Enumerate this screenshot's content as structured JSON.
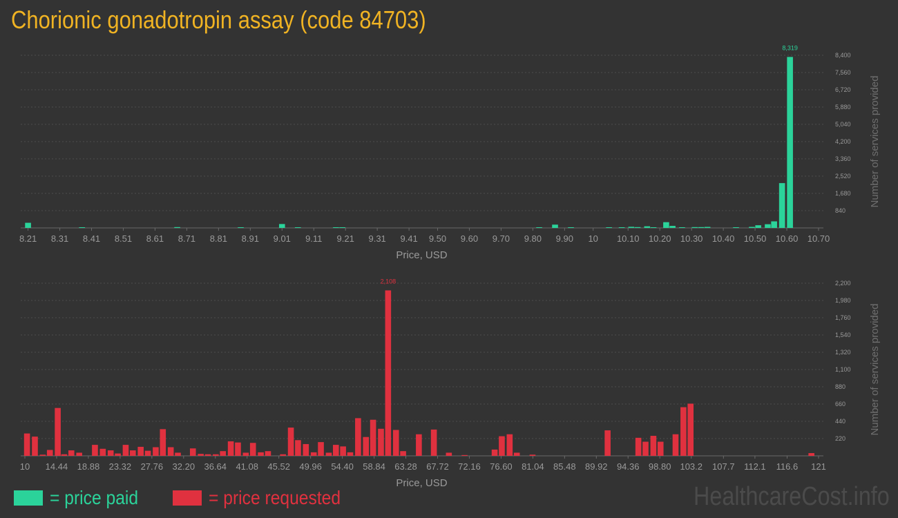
{
  "title": "Chorionic gonadotropin assay (code 84703)",
  "legend": {
    "paid_label": "= price paid",
    "requested_label": "= price requested"
  },
  "watermark": "HealthcareCost.info",
  "colors": {
    "paid": "#2bd39a",
    "requested": "#e0313f",
    "title": "#f0b323",
    "background": "#333333",
    "axis_text": "#9a9a9a"
  },
  "chart_data": [
    {
      "type": "bar",
      "id": "paid",
      "xlabel": "Price, USD",
      "ylabel": "Number of services provided",
      "xlim": [
        8.2,
        10.7
      ],
      "ylim": [
        0,
        8400
      ],
      "xticks": [
        {
          "v": 8.21,
          "label": "8.21"
        },
        {
          "v": 8.31,
          "label": "8.31"
        },
        {
          "v": 8.41,
          "label": "8.41"
        },
        {
          "v": 8.51,
          "label": "8.51"
        },
        {
          "v": 8.61,
          "label": "8.61"
        },
        {
          "v": 8.71,
          "label": "8.71"
        },
        {
          "v": 8.81,
          "label": "8.81"
        },
        {
          "v": 8.91,
          "label": "8.91"
        },
        {
          "v": 9.01,
          "label": "9.01"
        },
        {
          "v": 9.11,
          "label": "9.11"
        },
        {
          "v": 9.21,
          "label": "9.21"
        },
        {
          "v": 9.31,
          "label": "9.31"
        },
        {
          "v": 9.41,
          "label": "9.41"
        },
        {
          "v": 9.5,
          "label": "9.50"
        },
        {
          "v": 9.6,
          "label": "9.60"
        },
        {
          "v": 9.7,
          "label": "9.70"
        },
        {
          "v": 9.8,
          "label": "9.80"
        },
        {
          "v": 9.9,
          "label": "9.90"
        },
        {
          "v": 9.99,
          "label": "10"
        },
        {
          "v": 10.1,
          "label": "10.10"
        },
        {
          "v": 10.2,
          "label": "10.20"
        },
        {
          "v": 10.3,
          "label": "10.30"
        },
        {
          "v": 10.4,
          "label": "10.40"
        },
        {
          "v": 10.5,
          "label": "10.50"
        },
        {
          "v": 10.6,
          "label": "10.60"
        },
        {
          "v": 10.7,
          "label": "10.70"
        }
      ],
      "yticks": [
        {
          "v": 840,
          "label": "840"
        },
        {
          "v": 1680,
          "label": "1,680"
        },
        {
          "v": 2520,
          "label": "2,520"
        },
        {
          "v": 3360,
          "label": "3,360"
        },
        {
          "v": 4200,
          "label": "4,200"
        },
        {
          "v": 5040,
          "label": "5,040"
        },
        {
          "v": 5880,
          "label": "5,880"
        },
        {
          "v": 6720,
          "label": "6,720"
        },
        {
          "v": 7560,
          "label": "7,560"
        },
        {
          "v": 8400,
          "label": "8,400"
        }
      ],
      "peak_label": {
        "x": 10.6,
        "value": 8319,
        "label": "8,319"
      },
      "points": [
        {
          "x": 8.21,
          "y": 250
        },
        {
          "x": 8.38,
          "y": 30
        },
        {
          "x": 8.68,
          "y": 40
        },
        {
          "x": 8.88,
          "y": 20
        },
        {
          "x": 9.01,
          "y": 190
        },
        {
          "x": 9.06,
          "y": 25
        },
        {
          "x": 9.18,
          "y": 20
        },
        {
          "x": 9.2,
          "y": 20
        },
        {
          "x": 9.82,
          "y": 30
        },
        {
          "x": 9.87,
          "y": 160
        },
        {
          "x": 9.92,
          "y": 25
        },
        {
          "x": 10.04,
          "y": 30
        },
        {
          "x": 10.08,
          "y": 30
        },
        {
          "x": 10.11,
          "y": 55
        },
        {
          "x": 10.13,
          "y": 40
        },
        {
          "x": 10.16,
          "y": 80
        },
        {
          "x": 10.18,
          "y": 30
        },
        {
          "x": 10.22,
          "y": 280
        },
        {
          "x": 10.24,
          "y": 100
        },
        {
          "x": 10.27,
          "y": 30
        },
        {
          "x": 10.31,
          "y": 40
        },
        {
          "x": 10.33,
          "y": 40
        },
        {
          "x": 10.35,
          "y": 50
        },
        {
          "x": 10.44,
          "y": 20
        },
        {
          "x": 10.49,
          "y": 50
        },
        {
          "x": 10.51,
          "y": 130
        },
        {
          "x": 10.54,
          "y": 180
        },
        {
          "x": 10.56,
          "y": 320
        },
        {
          "x": 10.585,
          "y": 2180
        },
        {
          "x": 10.61,
          "y": 8319
        }
      ]
    },
    {
      "type": "bar",
      "id": "requested",
      "xlabel": "Price, USD",
      "ylabel": "Number of services provided",
      "xlim": [
        10,
        121
      ],
      "ylim": [
        0,
        2200
      ],
      "xticks": [
        {
          "v": 10,
          "label": "10"
        },
        {
          "v": 14.44,
          "label": "14.44"
        },
        {
          "v": 18.88,
          "label": "18.88"
        },
        {
          "v": 23.32,
          "label": "23.32"
        },
        {
          "v": 27.76,
          "label": "27.76"
        },
        {
          "v": 32.2,
          "label": "32.20"
        },
        {
          "v": 36.64,
          "label": "36.64"
        },
        {
          "v": 41.08,
          "label": "41.08"
        },
        {
          "v": 45.52,
          "label": "45.52"
        },
        {
          "v": 49.96,
          "label": "49.96"
        },
        {
          "v": 54.4,
          "label": "54.40"
        },
        {
          "v": 58.84,
          "label": "58.84"
        },
        {
          "v": 63.28,
          "label": "63.28"
        },
        {
          "v": 67.72,
          "label": "67.72"
        },
        {
          "v": 72.16,
          "label": "72.16"
        },
        {
          "v": 76.6,
          "label": "76.60"
        },
        {
          "v": 81.04,
          "label": "81.04"
        },
        {
          "v": 85.48,
          "label": "85.48"
        },
        {
          "v": 89.92,
          "label": "89.92"
        },
        {
          "v": 94.36,
          "label": "94.36"
        },
        {
          "v": 98.8,
          "label": "98.80"
        },
        {
          "v": 103.2,
          "label": "103.2"
        },
        {
          "v": 107.7,
          "label": "107.7"
        },
        {
          "v": 112.1,
          "label": "112.1"
        },
        {
          "v": 116.6,
          "label": "116.6"
        },
        {
          "v": 121,
          "label": "121"
        }
      ],
      "yticks": [
        {
          "v": 220,
          "label": "220"
        },
        {
          "v": 440,
          "label": "440"
        },
        {
          "v": 660,
          "label": "660"
        },
        {
          "v": 880,
          "label": "880"
        },
        {
          "v": 1100,
          "label": "1,100"
        },
        {
          "v": 1320,
          "label": "1,320"
        },
        {
          "v": 1540,
          "label": "1,540"
        },
        {
          "v": 1760,
          "label": "1,760"
        },
        {
          "v": 1980,
          "label": "1,980"
        },
        {
          "v": 2200,
          "label": "2,200"
        }
      ],
      "peak_label": {
        "x": 62.5,
        "value": 2108,
        "label": "2,108"
      },
      "points": [
        {
          "x": 10.3,
          "y": 285
        },
        {
          "x": 11.4,
          "y": 245
        },
        {
          "x": 12.5,
          "y": 15
        },
        {
          "x": 13.5,
          "y": 75
        },
        {
          "x": 14.6,
          "y": 610
        },
        {
          "x": 15.5,
          "y": 20
        },
        {
          "x": 16.5,
          "y": 70
        },
        {
          "x": 17.6,
          "y": 40
        },
        {
          "x": 19.8,
          "y": 140
        },
        {
          "x": 20.9,
          "y": 90
        },
        {
          "x": 22.0,
          "y": 70
        },
        {
          "x": 23.0,
          "y": 30
        },
        {
          "x": 24.1,
          "y": 140
        },
        {
          "x": 25.1,
          "y": 70
        },
        {
          "x": 26.2,
          "y": 115
        },
        {
          "x": 27.2,
          "y": 65
        },
        {
          "x": 28.3,
          "y": 110
        },
        {
          "x": 29.3,
          "y": 340
        },
        {
          "x": 30.4,
          "y": 110
        },
        {
          "x": 31.4,
          "y": 40
        },
        {
          "x": 33.5,
          "y": 95
        },
        {
          "x": 34.6,
          "y": 25
        },
        {
          "x": 35.6,
          "y": 20
        },
        {
          "x": 36.7,
          "y": 20
        },
        {
          "x": 37.7,
          "y": 60
        },
        {
          "x": 38.8,
          "y": 185
        },
        {
          "x": 39.8,
          "y": 170
        },
        {
          "x": 40.9,
          "y": 40
        },
        {
          "x": 41.9,
          "y": 165
        },
        {
          "x": 43.0,
          "y": 45
        },
        {
          "x": 44.0,
          "y": 60
        },
        {
          "x": 46.1,
          "y": 20
        },
        {
          "x": 47.2,
          "y": 360
        },
        {
          "x": 48.2,
          "y": 200
        },
        {
          "x": 49.3,
          "y": 150
        },
        {
          "x": 50.4,
          "y": 45
        },
        {
          "x": 51.4,
          "y": 175
        },
        {
          "x": 52.5,
          "y": 40
        },
        {
          "x": 53.5,
          "y": 140
        },
        {
          "x": 54.5,
          "y": 120
        },
        {
          "x": 55.5,
          "y": 45
        },
        {
          "x": 56.6,
          "y": 480
        },
        {
          "x": 57.7,
          "y": 240
        },
        {
          "x": 58.7,
          "y": 460
        },
        {
          "x": 59.8,
          "y": 345
        },
        {
          "x": 60.8,
          "y": 2108
        },
        {
          "x": 61.9,
          "y": 330
        },
        {
          "x": 62.9,
          "y": 60
        },
        {
          "x": 65.1,
          "y": 275
        },
        {
          "x": 67.2,
          "y": 335
        },
        {
          "x": 69.3,
          "y": 40
        },
        {
          "x": 71.5,
          "y": 10
        },
        {
          "x": 75.7,
          "y": 80
        },
        {
          "x": 76.7,
          "y": 250
        },
        {
          "x": 77.8,
          "y": 275
        },
        {
          "x": 78.8,
          "y": 40
        },
        {
          "x": 81.0,
          "y": 15
        },
        {
          "x": 91.5,
          "y": 325
        },
        {
          "x": 95.8,
          "y": 230
        },
        {
          "x": 96.8,
          "y": 180
        },
        {
          "x": 97.9,
          "y": 255
        },
        {
          "x": 98.9,
          "y": 180
        },
        {
          "x": 101.0,
          "y": 275
        },
        {
          "x": 102.1,
          "y": 620
        },
        {
          "x": 103.1,
          "y": 665
        },
        {
          "x": 120.0,
          "y": 35
        }
      ]
    }
  ]
}
